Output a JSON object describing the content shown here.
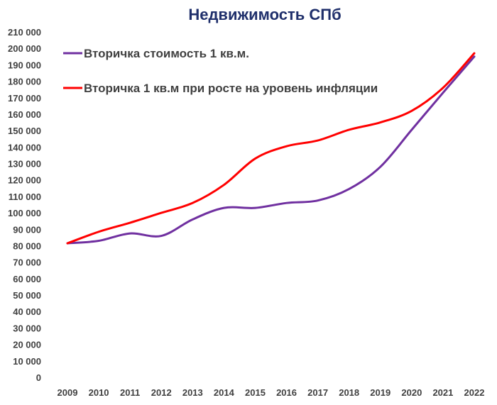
{
  "chart_data": {
    "type": "line",
    "title": "Недвижимость СПб",
    "xlabel": "",
    "ylabel": "",
    "x": [
      "2009",
      "2010",
      "2011",
      "2012",
      "2013",
      "2014",
      "2015",
      "2016",
      "2017",
      "2018",
      "2019",
      "2020",
      "2021",
      "2022"
    ],
    "ylim": [
      0,
      210000
    ],
    "yticks": [
      "0",
      "10 000",
      "20 000",
      "30 000",
      "40 000",
      "50 000",
      "60 000",
      "70 000",
      "80 000",
      "90 000",
      "100 000",
      "110 000",
      "120 000",
      "130 000",
      "140 000",
      "150 000",
      "160 000",
      "170 000",
      "180 000",
      "190 000",
      "200 000",
      "210 000"
    ],
    "grid": false,
    "legend_position": "top-left",
    "series": [
      {
        "name": "Вторичка стоимость 1 кв.м.",
        "color": "#7030a0",
        "values": [
          81500,
          83000,
          87500,
          86000,
          96000,
          103000,
          103000,
          106000,
          107500,
          114500,
          128000,
          150500,
          173000,
          195000
        ]
      },
      {
        "name": "Вторичка 1 кв.м при росте на уровень инфляции",
        "color": "#ff0000",
        "values": [
          81500,
          88500,
          94000,
          100000,
          106000,
          117000,
          133000,
          140500,
          144000,
          150500,
          155000,
          162000,
          176000,
          197000
        ]
      }
    ]
  }
}
